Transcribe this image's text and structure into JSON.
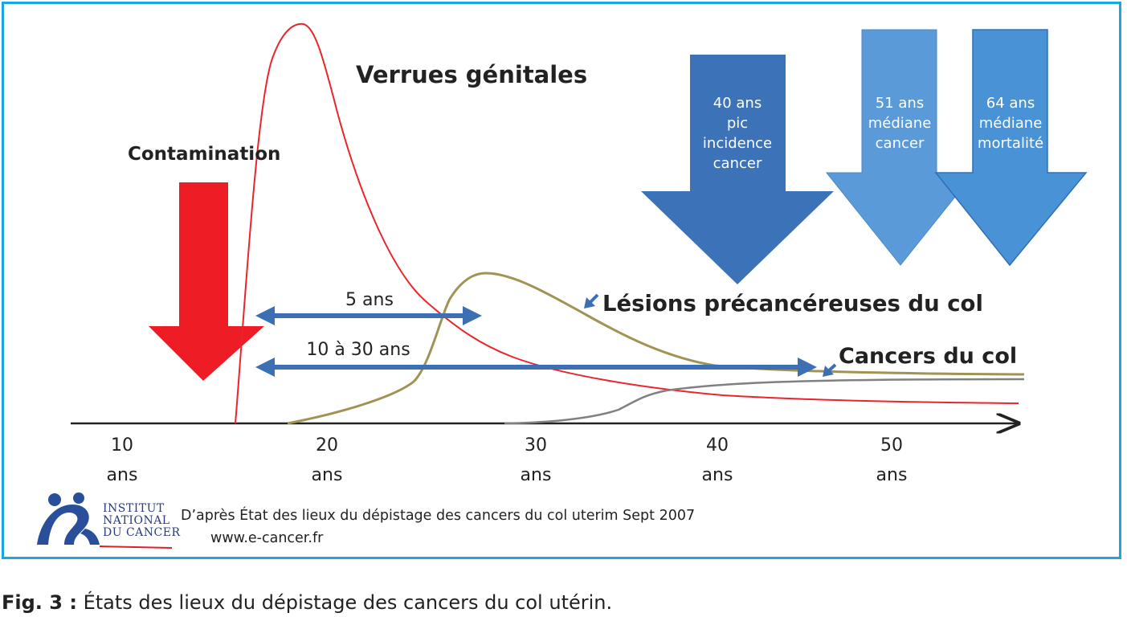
{
  "labels": {
    "verrues": "Verrues génitales",
    "contamination": "Contamination",
    "lesions": "Lésions précancéreuses du col",
    "cancers": "Cancers du col",
    "span_short": "5 ans",
    "span_long": "10 à 30 ans"
  },
  "milestones": [
    {
      "lines": [
        "40 ans",
        "pic",
        "incidence",
        "cancer"
      ],
      "color": "#3c72b8"
    },
    {
      "lines": [
        "51 ans",
        "médiane",
        "cancer"
      ],
      "color": "#5a9ad8"
    },
    {
      "lines": [
        "64 ans",
        "médiane",
        "mortalité"
      ],
      "color": "#4a92d6"
    }
  ],
  "axis": {
    "ticks": [
      {
        "value": "10",
        "unit": "ans"
      },
      {
        "value": "20",
        "unit": "ans"
      },
      {
        "value": "30",
        "unit": "ans"
      },
      {
        "value": "40",
        "unit": "ans"
      },
      {
        "value": "50",
        "unit": "ans"
      }
    ]
  },
  "curves": [
    {
      "name": "verrues",
      "color": "#e8262b"
    },
    {
      "name": "lesions",
      "color": "#a09454"
    },
    {
      "name": "cancers",
      "color": "#808080"
    }
  ],
  "logo": {
    "line1": "INSTITUT",
    "line2": "NATIONAL",
    "line3": "DU CANCER"
  },
  "source": {
    "text": "D’après État des lieux du dépistage des cancers du col uterim Sept 2007",
    "url": "www.e-cancer.fr"
  },
  "caption": {
    "prefix": "Fig. 3 :",
    "text": " États des lieux du dépistage des cancers du col utérin."
  },
  "colors": {
    "frame": "#1aa7e0",
    "contamination_arrow": "#ee1c25",
    "span_arrow": "#3c6fb4"
  }
}
